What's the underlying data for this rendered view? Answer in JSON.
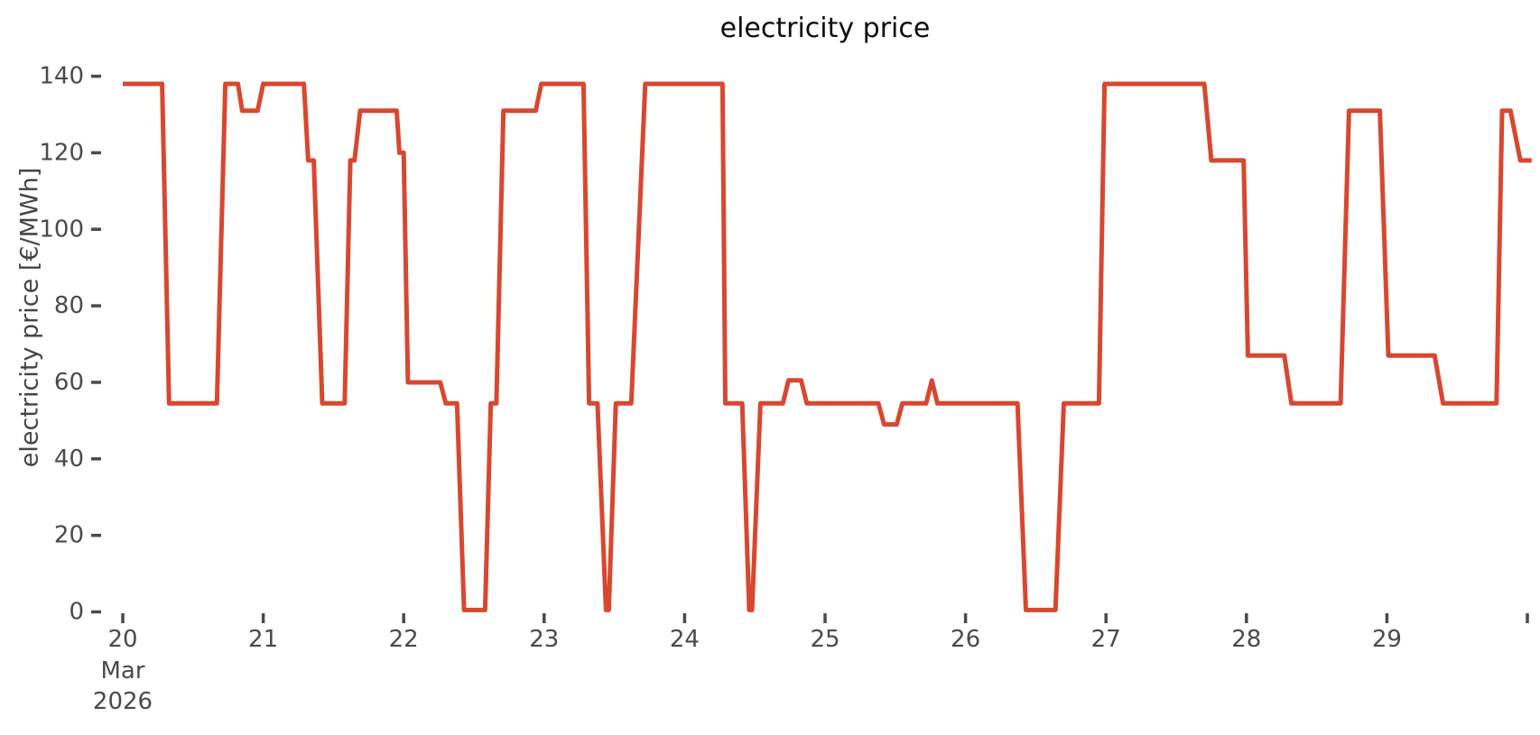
{
  "chart_data": {
    "type": "line",
    "title": "electricity price",
    "ylabel": "electricity price [€/MWh]",
    "series_name": "electricity price",
    "line_color": "#d8472f",
    "tick_color": "#4a4a4a",
    "title_color": "#0d0d0d",
    "grid": false,
    "legend": false,
    "ylim": [
      0,
      140
    ],
    "y_ticks": [
      0,
      20,
      40,
      60,
      80,
      100,
      120,
      140
    ],
    "x_unit": "days since 2026-03-20 00:00",
    "xlim": [
      0,
      10.05
    ],
    "x_tick_days": [
      0,
      1,
      2,
      3,
      4,
      5,
      6,
      7,
      8,
      9,
      10
    ],
    "x_tick_labels": [
      "20",
      "21",
      "22",
      "23",
      "24",
      "25",
      "26",
      "27",
      "28",
      "29",
      ""
    ],
    "x_offset_month": "Mar",
    "x_offset_year": "2026",
    "points": [
      [
        0.0,
        138
      ],
      [
        0.28,
        138
      ],
      [
        0.33,
        54.5
      ],
      [
        0.67,
        54.5
      ],
      [
        0.73,
        138
      ],
      [
        0.82,
        138
      ],
      [
        0.85,
        131
      ],
      [
        0.96,
        131
      ],
      [
        1.0,
        138
      ],
      [
        1.29,
        138
      ],
      [
        1.32,
        118
      ],
      [
        1.36,
        118
      ],
      [
        1.42,
        54.5
      ],
      [
        1.58,
        54.5
      ],
      [
        1.62,
        118
      ],
      [
        1.65,
        118
      ],
      [
        1.69,
        131
      ],
      [
        1.95,
        131
      ],
      [
        1.97,
        120
      ],
      [
        2.0,
        120
      ],
      [
        2.03,
        60
      ],
      [
        2.26,
        60
      ],
      [
        2.3,
        54.5
      ],
      [
        2.38,
        54.5
      ],
      [
        2.43,
        0.5
      ],
      [
        2.58,
        0.5
      ],
      [
        2.62,
        54.5
      ],
      [
        2.66,
        54.5
      ],
      [
        2.71,
        131
      ],
      [
        2.94,
        131
      ],
      [
        2.98,
        138
      ],
      [
        3.28,
        138
      ],
      [
        3.32,
        54.5
      ],
      [
        3.38,
        54.5
      ],
      [
        3.44,
        0.5
      ],
      [
        3.46,
        0.5
      ],
      [
        3.51,
        54.5
      ],
      [
        3.62,
        54.5
      ],
      [
        3.72,
        138
      ],
      [
        4.27,
        138
      ],
      [
        4.29,
        54.5
      ],
      [
        4.41,
        54.5
      ],
      [
        4.46,
        0.5
      ],
      [
        4.48,
        0.5
      ],
      [
        4.54,
        54.5
      ],
      [
        4.7,
        54.5
      ],
      [
        4.74,
        60.5
      ],
      [
        4.83,
        60.5
      ],
      [
        4.87,
        54.5
      ],
      [
        5.38,
        54.5
      ],
      [
        5.42,
        49
      ],
      [
        5.51,
        49
      ],
      [
        5.55,
        54.5
      ],
      [
        5.72,
        54.5
      ],
      [
        5.76,
        60.5
      ],
      [
        5.8,
        54.5
      ],
      [
        6.37,
        54.5
      ],
      [
        6.43,
        0.5
      ],
      [
        6.64,
        0.5
      ],
      [
        6.7,
        54.5
      ],
      [
        6.95,
        54.5
      ],
      [
        6.99,
        138
      ],
      [
        7.7,
        138
      ],
      [
        7.75,
        118
      ],
      [
        7.98,
        118
      ],
      [
        8.01,
        67
      ],
      [
        8.27,
        67
      ],
      [
        8.32,
        54.5
      ],
      [
        8.67,
        54.5
      ],
      [
        8.73,
        131
      ],
      [
        8.95,
        131
      ],
      [
        9.01,
        67
      ],
      [
        9.34,
        67
      ],
      [
        9.4,
        54.5
      ],
      [
        9.78,
        54.5
      ],
      [
        9.82,
        131
      ],
      [
        9.88,
        131
      ],
      [
        9.95,
        118
      ],
      [
        10.03,
        118
      ]
    ]
  }
}
